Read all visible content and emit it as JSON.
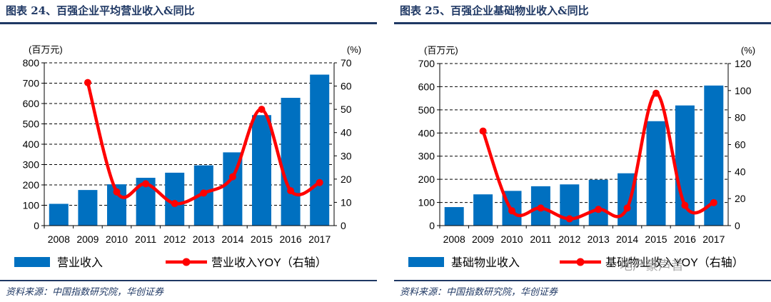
{
  "charts": [
    {
      "title": "图表 24、百强企业平均营业收入&同比",
      "source": "资料来源：中国指数研究院，华创证券",
      "colors": {
        "bar": "#0070c0",
        "line": "#ff0000"
      },
      "chart_data": {
        "type": "bar+line",
        "categories": [
          "2008",
          "2009",
          "2010",
          "2011",
          "2012",
          "2013",
          "2014",
          "2015",
          "2016",
          "2017"
        ],
        "series": [
          {
            "name": "营业收入",
            "type": "bar",
            "axis": "left",
            "values": [
              107,
              175,
              203,
              235,
              260,
              296,
              360,
              543,
              628,
              742
            ]
          },
          {
            "name": "营业收入YOY（右轴）",
            "type": "line",
            "axis": "right",
            "values": [
              null,
              61.5,
              14.5,
              18,
              9.5,
              14,
              21,
              50,
              15,
              18.5
            ]
          }
        ],
        "ylabel_left": "(百万元)",
        "ylabel_right": "(%)",
        "ylim_left": [
          0,
          800
        ],
        "yticks_left": [
          "0",
          "100",
          "200",
          "300",
          "400",
          "500",
          "600",
          "700",
          "800"
        ],
        "ylim_right": [
          0,
          70
        ],
        "yticks_right": [
          "0",
          "10",
          "20",
          "30",
          "40",
          "50",
          "60",
          "70"
        ],
        "grid": "dashed-horizontal",
        "legend": "bottom"
      }
    },
    {
      "title": "图表 25、百强企业基础物业收入&同比",
      "source": "资料来源：中国指数研究院，华创证券",
      "colors": {
        "bar": "#0070c0",
        "line": "#ff0000"
      },
      "chart_data": {
        "type": "bar+line",
        "categories": [
          "2008",
          "2009",
          "2010",
          "2011",
          "2012",
          "2013",
          "2014",
          "2015",
          "2016",
          "2017"
        ],
        "series": [
          {
            "name": "基础物业收入",
            "type": "bar",
            "axis": "left",
            "values": [
              80,
              135,
              150,
              170,
              178,
              198,
              226,
              451,
              519,
              605
            ]
          },
          {
            "name": "基础物业收入YOY（右轴）",
            "type": "line",
            "axis": "right",
            "values": [
              null,
              70,
              11,
              13,
              5,
              12,
              13,
              98,
              15,
              17
            ]
          }
        ],
        "ylabel_left": "(百万元)",
        "ylabel_right": "(%)",
        "ylim_left": [
          0,
          700
        ],
        "yticks_left": [
          "0",
          "100",
          "200",
          "300",
          "400",
          "500",
          "600",
          "700"
        ],
        "ylim_right": [
          0,
          120
        ],
        "yticks_right": [
          "0",
          "20",
          "40",
          "60",
          "80",
          "100",
          "120"
        ],
        "grid": "dashed-horizontal",
        "legend": "bottom"
      }
    }
  ],
  "watermark": "地产豪声音"
}
